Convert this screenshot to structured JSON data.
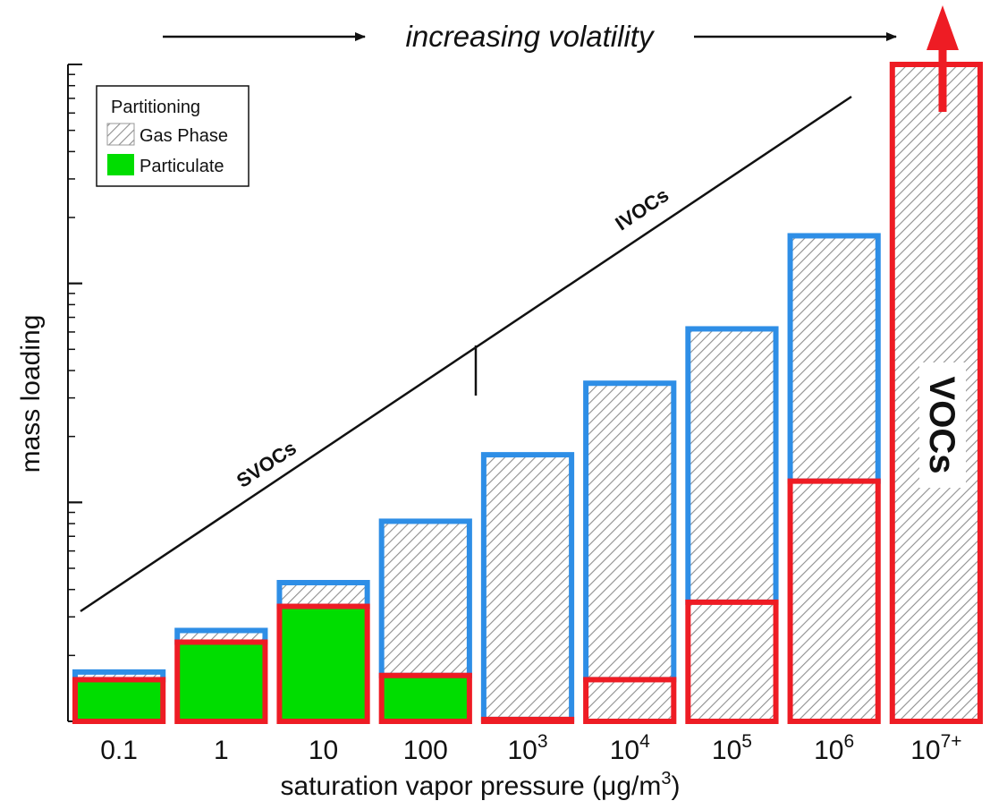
{
  "chart_data": {
    "type": "bar",
    "ylabel": "mass loading",
    "xlabel": {
      "main": "saturation vapor pressure (",
      "unit_mu": "μ",
      "unit_g": "g/m",
      "unit_exp": "3",
      "close": ")"
    },
    "top_annotation": "increasing volatility",
    "categories": [
      {
        "base": "0.1",
        "exp": ""
      },
      {
        "base": "1",
        "exp": ""
      },
      {
        "base": "10",
        "exp": ""
      },
      {
        "base": "100",
        "exp": ""
      },
      {
        "base": "10",
        "exp": "3"
      },
      {
        "base": "10",
        "exp": "4"
      },
      {
        "base": "10",
        "exp": "5"
      },
      {
        "base": "10",
        "exp": "6"
      },
      {
        "base": "10",
        "exp": "7+"
      }
    ],
    "y_scale": "log",
    "ylim": [
      1,
      1000
    ],
    "series": [
      {
        "name": "Particulate",
        "kind": "red-outlined mass",
        "values": [
          1.55,
          2.3,
          3.35,
          1.62,
          1.02,
          1.55,
          3.5,
          12.5,
          1000
        ]
      },
      {
        "name": "Gas Phase",
        "kind": "blue-outlined total",
        "values": [
          1.68,
          2.6,
          4.3,
          8.2,
          16.5,
          35,
          62,
          165,
          null
        ]
      }
    ],
    "particulate_fill_categories": [
      0,
      1,
      2,
      3
    ],
    "legend": {
      "title": "Partitioning",
      "entries": [
        {
          "label": "Gas Phase",
          "swatch": "hatched"
        },
        {
          "label": "Particulate",
          "swatch": "#00dd00"
        }
      ],
      "position": "top-left"
    },
    "region_labels": {
      "svocs": "SVOCs",
      "ivocs": "IVOCs",
      "vocs": "VOCs"
    },
    "colors": {
      "particulate": "#00dd00",
      "red_outline": "#ee1c24",
      "blue_outline": "#2e8ee6",
      "hatch": "#999999",
      "arrow": "#ee1c24"
    },
    "grid": false
  }
}
